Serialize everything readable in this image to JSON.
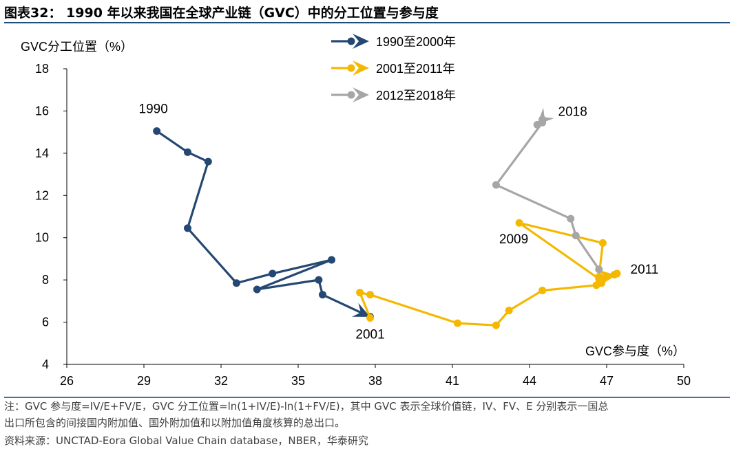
{
  "figure": {
    "title": "图表32：  1990 年以来我国在全球产业链（GVC）中的分工位置与参与度",
    "note_line1": "注：GVC 参与度=IV/E+FV/E，GVC 分工位置=ln(1+IV/E)-ln(1+FV/E)，其中 GVC 表示全球价值链，IV、FV、E 分别表示一国总",
    "note_line2": "出口所包含的间接国内附加值、国外附加值和以附加值角度核算的总出口。",
    "source": "资料来源：UNCTAD-Eora Global Value Chain database，NBER，华泰研究"
  },
  "chart_data": {
    "type": "line",
    "title": "",
    "xlabel": "GVC参与度（%）",
    "ylabel": "GVC分工位置（%）",
    "xlim": [
      26,
      50
    ],
    "ylim": [
      4,
      18
    ],
    "xticks": [
      26,
      29,
      32,
      35,
      38,
      41,
      44,
      47,
      50
    ],
    "yticks": [
      4,
      6,
      8,
      10,
      12,
      14,
      16,
      18
    ],
    "grid": false,
    "legend_position": "top-center",
    "series": [
      {
        "name": "1990至2000年",
        "color": "#254873",
        "points": [
          [
            29.5,
            15.05
          ],
          [
            30.7,
            14.05
          ],
          [
            31.5,
            13.6
          ],
          [
            30.7,
            10.45
          ],
          [
            32.6,
            7.85
          ],
          [
            34.0,
            8.3
          ],
          [
            36.3,
            8.95
          ],
          [
            33.4,
            7.55
          ],
          [
            35.8,
            8.0
          ],
          [
            35.95,
            7.3
          ],
          [
            37.8,
            6.25
          ]
        ]
      },
      {
        "name": "2001至2011年",
        "color": "#f5b800",
        "points": [
          [
            37.8,
            6.2
          ],
          [
            37.4,
            7.4
          ],
          [
            37.8,
            7.3
          ],
          [
            41.2,
            5.95
          ],
          [
            42.7,
            5.85
          ],
          [
            43.2,
            6.55
          ],
          [
            44.5,
            7.5
          ],
          [
            46.6,
            7.75
          ],
          [
            46.8,
            7.85
          ],
          [
            47.4,
            8.3
          ],
          [
            46.7,
            8.05
          ],
          [
            43.6,
            10.7
          ],
          [
            46.85,
            9.75
          ],
          [
            46.7,
            8.15
          ],
          [
            47.3,
            8.25
          ]
        ]
      },
      {
        "name": "2012至2018年",
        "color": "#a6a6a6",
        "points": [
          [
            46.7,
            8.5
          ],
          [
            45.8,
            10.1
          ],
          [
            45.6,
            10.9
          ],
          [
            42.7,
            12.5
          ],
          [
            44.5,
            15.45
          ],
          [
            44.5,
            15.6
          ],
          [
            44.3,
            15.35
          ]
        ]
      }
    ],
    "annotations": [
      {
        "text": "1990",
        "x": 29.5,
        "y": 15.05
      },
      {
        "text": "2001",
        "x": 37.8,
        "y": 6.2
      },
      {
        "text": "2009",
        "x": 43.6,
        "y": 10.7
      },
      {
        "text": "2011",
        "x": 47.4,
        "y": 8.3
      },
      {
        "text": "2018",
        "x": 44.5,
        "y": 15.6
      }
    ]
  }
}
